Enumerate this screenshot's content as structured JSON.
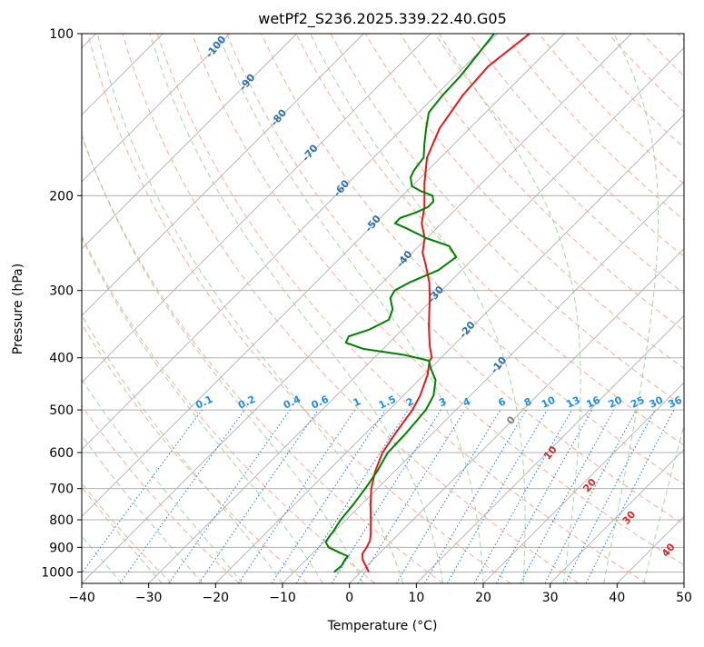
{
  "chart_data": {
    "type": "line",
    "subtype": "skew-t log-p diagram",
    "title": "wetPf2_S236.2025.339.22.40.G05",
    "xlabel": "Temperature (°C)",
    "ylabel": "Pressure (hPa)",
    "xlim": [
      -40,
      50
    ],
    "ylim": [
      1050,
      100
    ],
    "y_scale": "log",
    "skew": "isotherms slanted at 45°",
    "x_ticks": [
      -40,
      -30,
      -20,
      -10,
      0,
      10,
      20,
      30,
      40,
      50
    ],
    "y_ticks": [
      1000,
      900,
      800,
      700,
      600,
      500,
      400,
      300,
      200,
      100
    ],
    "grid": true,
    "series": [
      {
        "name": "",
        "role": "temperature",
        "color": "#e31a1c",
        "pressure": [
          1000,
          950,
          925,
          900,
          875,
          850,
          800,
          750,
          700,
          650,
          600,
          550,
          500,
          470,
          430,
          405,
          400,
          380,
          350,
          330,
          310,
          290,
          270,
          255,
          240,
          225,
          210,
          190,
          170,
          150,
          130,
          115,
          100
        ],
        "temperature": [
          1.2,
          -1.5,
          -2.5,
          -2.8,
          -3.3,
          -4.2,
          -6.3,
          -8.6,
          -10.9,
          -12.9,
          -14.6,
          -15.6,
          -16.5,
          -17.5,
          -19.5,
          -21.3,
          -21.4,
          -23.5,
          -26.5,
          -28.5,
          -30.6,
          -33.0,
          -36.0,
          -38.5,
          -40.3,
          -43.0,
          -45.0,
          -48.5,
          -52.0,
          -54.5,
          -56.0,
          -56.5,
          -55.2
        ]
      },
      {
        "name": "",
        "role": "dewpoint",
        "color": "#008000",
        "pressure": [
          1000,
          975,
          950,
          935,
          925,
          910,
          900,
          880,
          860,
          840,
          800,
          750,
          700,
          650,
          600,
          550,
          500,
          470,
          440,
          420,
          405,
          395,
          385,
          375,
          365,
          355,
          340,
          325,
          310,
          300,
          290,
          275,
          260,
          248,
          240,
          230,
          225,
          220,
          215,
          210,
          205,
          200,
          196,
          192,
          185,
          180,
          175,
          170,
          160,
          150,
          140,
          130,
          120,
          110,
          100
        ],
        "dewpoint": [
          -4.0,
          -3.8,
          -4.2,
          -4.3,
          -5.5,
          -7.3,
          -8.5,
          -9.7,
          -10.0,
          -10.2,
          -10.8,
          -11.2,
          -11.8,
          -12.6,
          -13.8,
          -14.0,
          -14.5,
          -15.5,
          -17.5,
          -19.8,
          -21.4,
          -26.0,
          -33.0,
          -36.5,
          -37.0,
          -35.0,
          -33.5,
          -34.5,
          -36.5,
          -37.0,
          -36.0,
          -33.5,
          -32.8,
          -35.5,
          -40.0,
          -44.5,
          -47.0,
          -47.0,
          -45.5,
          -44.5,
          -44.5,
          -45.5,
          -48.0,
          -50.0,
          -51.5,
          -52.0,
          -52.3,
          -52.5,
          -54.5,
          -56.5,
          -58.5,
          -59.0,
          -59.2,
          -59.8,
          -60.5
        ]
      }
    ],
    "dry_adiabat_labels": [
      "-100",
      "-90",
      "-80",
      "-70",
      "-60",
      "-50",
      "-40",
      "-30",
      "-20",
      "-10",
      "0",
      "10",
      "20",
      "30",
      "40"
    ],
    "mixing_ratio_labels": [
      "0.1",
      "0.2",
      "0.4",
      "0.6",
      "1",
      "1.5",
      "2",
      "3",
      "4",
      "6",
      "8",
      "10",
      "13",
      "16",
      "20",
      "25",
      "30",
      "36"
    ],
    "colors": {
      "isotherm": "#b0b0b0",
      "isobar": "#b0b0b0",
      "dry_adiabat": "#f4a58a",
      "moist_adiabat": "#8fc98f",
      "mixing_ratio": "#1f77d4",
      "adiabat_label_cold": "#2c6fa8",
      "adiabat_label_warm": "#d62728",
      "adiabat_label_zero": "#808080",
      "mixing_label": "#1f8fe0"
    }
  }
}
